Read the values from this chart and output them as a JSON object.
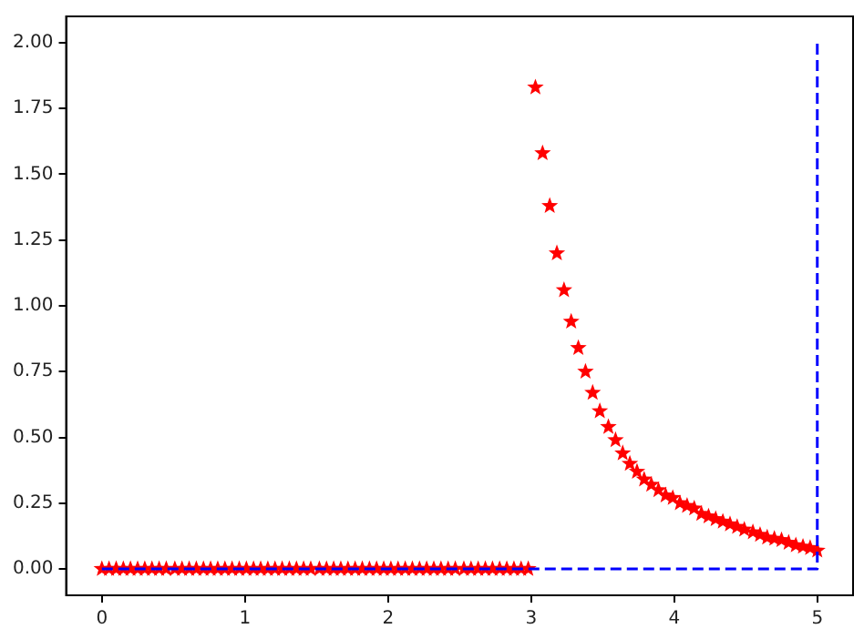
{
  "chart_data": {
    "type": "scatter",
    "xlim": [
      -0.25,
      5.25
    ],
    "xticks": [
      0,
      1,
      2,
      3,
      4,
      5
    ],
    "ylim": [
      -0.1,
      2.1
    ],
    "yticks": [
      {
        "value": 0,
        "label": "0.00"
      },
      {
        "value": 0.25,
        "label": "0.25"
      },
      {
        "value": 0.5,
        "label": "0.50"
      },
      {
        "value": 0.75,
        "label": "0.75"
      },
      {
        "value": 1,
        "label": "1.00"
      },
      {
        "value": 1.25,
        "label": "1.25"
      },
      {
        "value": 1.5,
        "label": "1.50"
      },
      {
        "value": 1.75,
        "label": "1.75"
      },
      {
        "value": 2,
        "label": "2.00"
      }
    ],
    "grid": false,
    "legend": false,
    "series": [
      {
        "color": "#ff0000",
        "marker": "star",
        "x": [
          0,
          0.05,
          0.1,
          0.15,
          0.2,
          0.25,
          0.3,
          0.35,
          0.4,
          0.45,
          0.51,
          0.56,
          0.61,
          0.66,
          0.71,
          0.76,
          0.81,
          0.86,
          0.91,
          0.96,
          1.01,
          1.06,
          1.11,
          1.16,
          1.21,
          1.26,
          1.31,
          1.36,
          1.41,
          1.46,
          1.52,
          1.57,
          1.62,
          1.67,
          1.72,
          1.77,
          1.82,
          1.87,
          1.92,
          1.97,
          2.02,
          2.07,
          2.12,
          2.17,
          2.22,
          2.27,
          2.32,
          2.37,
          2.42,
          2.47,
          2.53,
          2.58,
          2.63,
          2.68,
          2.73,
          2.78,
          2.83,
          2.88,
          2.93,
          2.98,
          3.03,
          3.08,
          3.13,
          3.18,
          3.23,
          3.28,
          3.33,
          3.38,
          3.43,
          3.48,
          3.54,
          3.59,
          3.64,
          3.69,
          3.74,
          3.79,
          3.84,
          3.89,
          3.94,
          3.99,
          4.04,
          4.09,
          4.14,
          4.19,
          4.24,
          4.29,
          4.34,
          4.39,
          4.44,
          4.49,
          4.55,
          4.6,
          4.65,
          4.7,
          4.75,
          4.8,
          4.85,
          4.9,
          4.95,
          5.0
        ],
        "values": [
          0,
          0,
          0,
          0,
          0,
          0,
          0,
          0,
          0,
          0,
          0,
          0,
          0,
          0,
          0,
          0,
          0,
          0,
          0,
          0,
          0,
          0,
          0,
          0,
          0,
          0,
          0,
          0,
          0,
          0,
          0,
          0,
          0,
          0,
          0,
          0,
          0,
          0,
          0,
          0,
          0,
          0,
          0,
          0,
          0,
          0,
          0,
          0,
          0,
          0,
          0,
          0,
          0,
          0,
          0,
          0,
          0,
          0,
          0,
          0,
          1.83,
          1.58,
          1.38,
          1.2,
          1.06,
          0.94,
          0.84,
          0.75,
          0.67,
          0.6,
          0.54,
          0.49,
          0.44,
          0.4,
          0.37,
          0.34,
          0.32,
          0.3,
          0.28,
          0.27,
          0.25,
          0.24,
          0.23,
          0.21,
          0.2,
          0.19,
          0.18,
          0.17,
          0.16,
          0.15,
          0.14,
          0.13,
          0.12,
          0.115,
          0.11,
          0.1,
          0.09,
          0.085,
          0.08,
          0.07
        ]
      },
      {
        "type": "line",
        "color": "#0000ff",
        "marker": "none",
        "line_style": "dashed",
        "x": [
          0,
          5,
          5
        ],
        "values": [
          0,
          0,
          2
        ]
      }
    ]
  }
}
